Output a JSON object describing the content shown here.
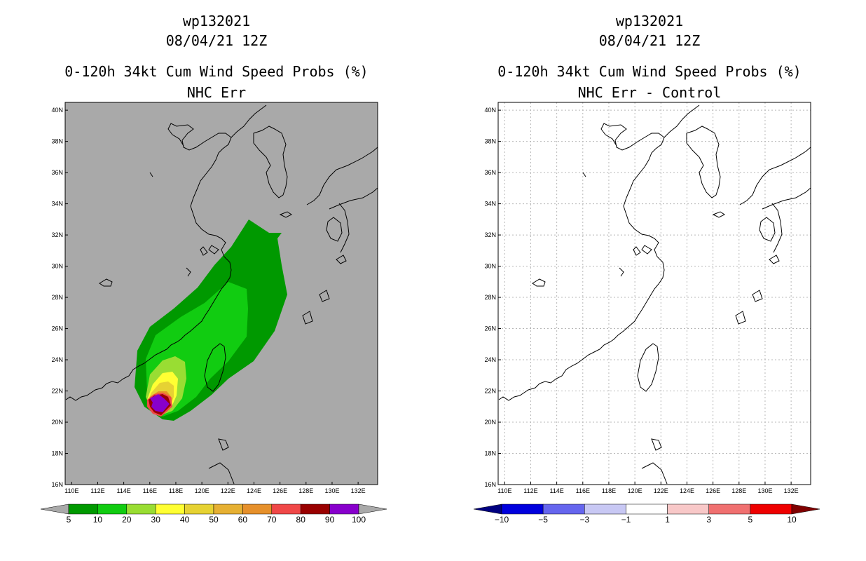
{
  "chart_data": [
    {
      "type": "heatmap",
      "title_lines": [
        "wp132021",
        "08/04/21 12Z",
        "0-120h 34kt Cum Wind Speed Probs (%)",
        "NHC Err"
      ],
      "x_ticks": [
        "110E",
        "112E",
        "114E",
        "116E",
        "118E",
        "120E",
        "122E",
        "124E",
        "126E",
        "128E",
        "130E",
        "132E"
      ],
      "y_ticks": [
        "16N",
        "18N",
        "20N",
        "22N",
        "24N",
        "26N",
        "28N",
        "30N",
        "32N",
        "34N",
        "36N",
        "38N",
        "40N"
      ],
      "xlim": [
        109.5,
        133.5
      ],
      "ylim": [
        16,
        40.5
      ],
      "background_color": "#a9a9a9",
      "colorbar": {
        "labels": [
          "5",
          "10",
          "20",
          "30",
          "40",
          "50",
          "60",
          "70",
          "80",
          "90",
          "100"
        ],
        "colors": [
          "#009900",
          "#11cc11",
          "#99dd33",
          "#ffff33",
          "#e6d233",
          "#e6b033",
          "#e6902b",
          "#f04848",
          "#990000",
          "#8800cc"
        ],
        "under_color": "#a9a9a9",
        "over_color": "#a9a9a9"
      }
    },
    {
      "type": "heatmap",
      "title_lines": [
        "wp132021",
        "08/04/21 12Z",
        "0-120h 34kt Cum Wind Speed Probs (%)",
        "NHC Err - Control"
      ],
      "x_ticks": [
        "110E",
        "112E",
        "114E",
        "116E",
        "118E",
        "120E",
        "122E",
        "124E",
        "126E",
        "128E",
        "130E",
        "132E"
      ],
      "y_ticks": [
        "16N",
        "18N",
        "20N",
        "22N",
        "24N",
        "26N",
        "28N",
        "30N",
        "32N",
        "34N",
        "36N",
        "38N",
        "40N"
      ],
      "xlim": [
        109.5,
        133.5
      ],
      "ylim": [
        16,
        40.5
      ],
      "background_color": "#ffffff",
      "colorbar": {
        "labels": [
          "-10",
          "-5",
          "-3",
          "-1",
          "1",
          "3",
          "5",
          "10"
        ],
        "colors": [
          "#0000dd",
          "#6666ee",
          "#c8c8f4",
          "#ffffff",
          "#f8c8c8",
          "#f07070",
          "#ee0000"
        ],
        "under_color": "#000080",
        "over_color": "#800000"
      }
    }
  ]
}
